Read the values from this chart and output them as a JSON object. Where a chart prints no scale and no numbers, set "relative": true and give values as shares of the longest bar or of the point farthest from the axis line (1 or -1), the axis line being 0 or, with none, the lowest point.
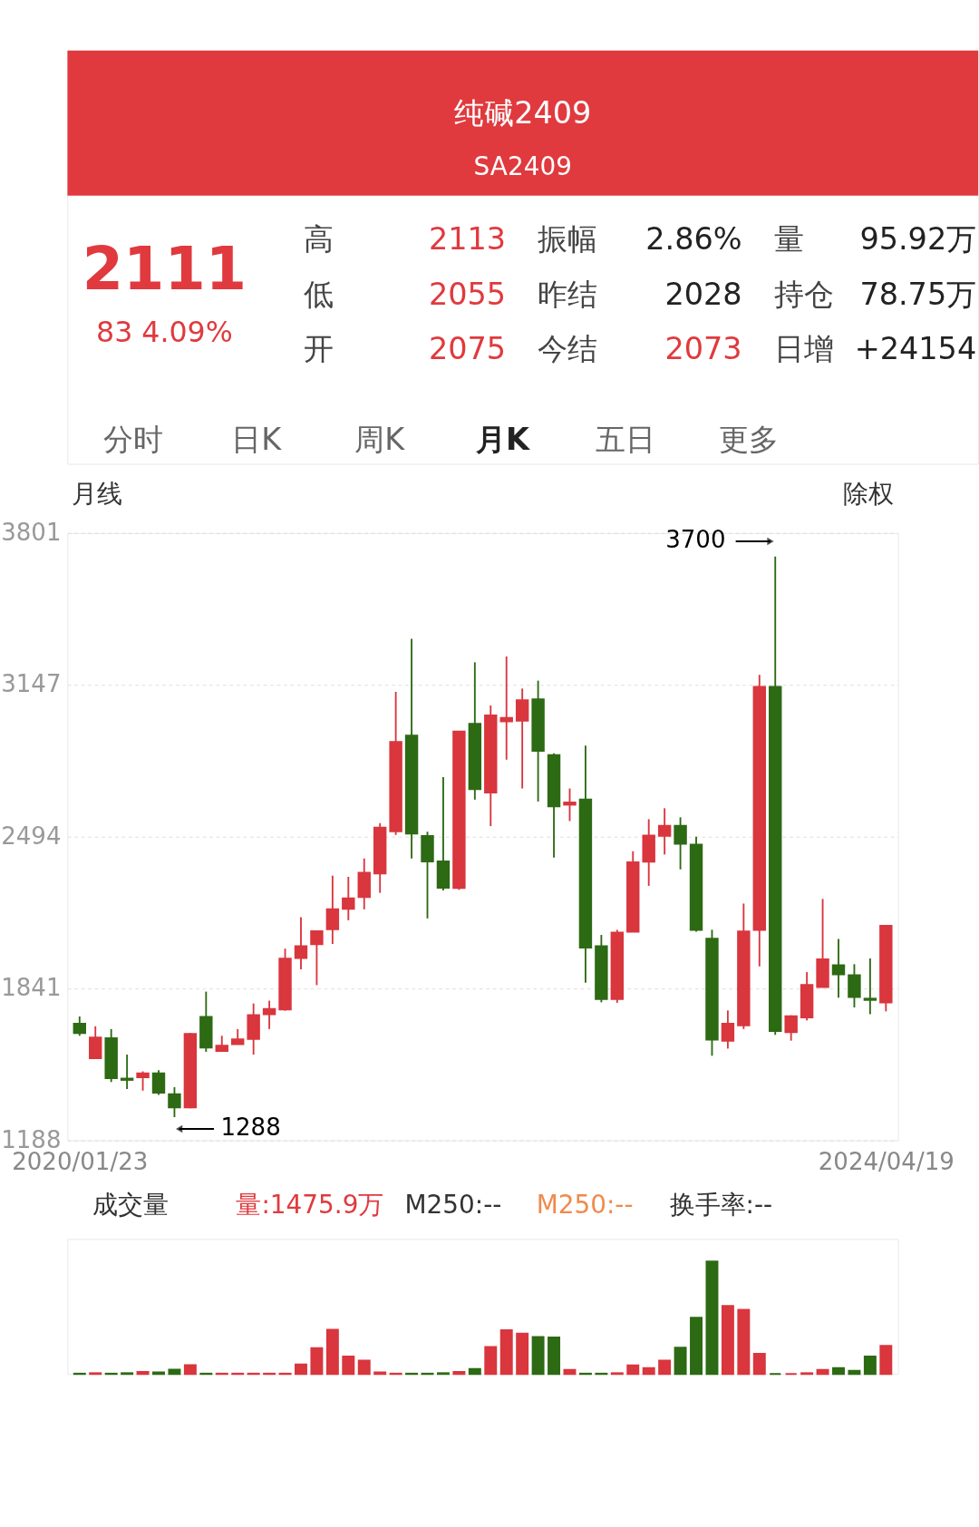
{
  "chart_data": [
    {
      "type": "other",
      "title": "纯碱2409",
      "subtitle": "SA2409",
      "annotations": [
        "2111",
        "83  4.09%",
        "高",
        "2113",
        "振幅",
        "2.86%",
        "量",
        "95.92万",
        "低",
        "2055",
        "昨结",
        "2028",
        "持仓",
        "78.75万",
        "开",
        "2075",
        "今结",
        "2073",
        "日增",
        "+24154",
        "分时",
        "日K",
        "周K",
        "月K",
        "五日",
        "更多"
      ]
    },
    {
      "type": "candlestick",
      "categories": [
        "2020/01/23",
        null,
        null,
        null,
        null,
        null,
        null,
        null,
        null,
        null,
        null,
        null,
        null,
        null,
        null,
        null,
        null,
        null,
        null,
        null,
        null,
        null,
        null,
        null,
        null,
        null,
        null,
        null,
        null,
        null,
        null,
        null,
        null,
        null,
        null,
        null,
        null,
        null,
        null,
        null,
        null,
        null,
        null,
        null,
        null,
        null,
        null,
        null,
        null,
        null,
        null,
        "2024/04/19"
      ],
      "ohlc": [
        [
          1689,
          1721,
          1638,
          1650
        ],
        [
          1542,
          1679,
          1542,
          1630
        ],
        [
          1627,
          1667,
          1439,
          1456
        ],
        [
          1453,
          1557,
          1409,
          1449
        ],
        [
          1460,
          1485,
          1402,
          1476
        ],
        [
          1476,
          1490,
          1384,
          1394
        ],
        [
          1386,
          1417,
          1288,
          1331
        ],
        [
          1331,
          1650,
          1326,
          1645
        ],
        [
          1718,
          1828,
          1569,
          1588
        ],
        [
          1573,
          1638,
          1569,
          1595
        ],
        [
          1603,
          1667,
          1600,
          1622
        ],
        [
          1625,
          1777,
          1557,
          1726
        ],
        [
          1731,
          1789,
          1667,
          1753
        ],
        [
          1752,
          2013,
          1746,
          1969
        ],
        [
          1973,
          2148,
          1924,
          2023
        ],
        [
          2033,
          2089,
          1856,
          2087
        ],
        [
          2097,
          2327,
          2033,
          2182
        ],
        [
          2185,
          2322,
          2135,
          2229
        ],
        [
          2236,
          2401,
          2182,
          2339
        ],
        [
          2337,
          2553,
          2253,
          2533
        ],
        [
          2519,
          3118,
          2502,
          2902
        ],
        [
          2929,
          3346,
          2401,
          2509
        ],
        [
          2497,
          2516,
          2143,
          2389
        ],
        [
          2388,
          2751,
          2263,
          2276
        ],
        [
          2275,
          2946,
          2266,
          2946
        ],
        [
          2980,
          3245,
          2654,
          2700
        ],
        [
          2685,
          3059,
          2540,
          3016
        ],
        [
          2992,
          3270,
          2826,
          3005
        ],
        [
          2994,
          3132,
          2702,
          3081
        ],
        [
          3085,
          3166,
          2646,
          2865
        ],
        [
          2845,
          2853,
          2405,
          2626
        ],
        [
          2633,
          2702,
          2562,
          2641
        ],
        [
          2654,
          2887,
          1866,
          2018
        ],
        [
          2023,
          2072,
          1782,
          1797
        ],
        [
          1797,
          2094,
          1780,
          2081
        ],
        [
          2086,
          2432,
          2086,
          2384
        ],
        [
          2388,
          2570,
          2283,
          2499
        ],
        [
          2499,
          2617,
          2418,
          2541
        ],
        [
          2541,
          2578,
          2354,
          2465
        ],
        [
          2460,
          2494,
          2086,
          2094
        ],
        [
          2055,
          2094,
          1552,
          1622
        ],
        [
          1617,
          1747,
          1583,
          1689
        ],
        [
          1684,
          2207,
          1667,
          2086
        ],
        [
          2094,
          3191,
          1937,
          3139
        ],
        [
          3139,
          3700,
          1642,
          1659
        ],
        [
          1654,
          1726,
          1617,
          1721
        ],
        [
          1718,
          1912,
          1704,
          1856
        ],
        [
          1848,
          2227,
          1848,
          1966
        ],
        [
          1941,
          2055,
          1802,
          1903
        ],
        [
          1898,
          1946,
          1760,
          1806
        ],
        [
          1797,
          1971,
          1731,
          1793
        ],
        [
          1782,
          2113,
          1743,
          2111
        ]
      ],
      "colors": [
        "#2d6a14",
        "#d9363e",
        "#2d6a14",
        "#2d6a14",
        "#d9363e",
        "#2d6a14",
        "#2d6a14",
        "#d9363e",
        "#2d6a14",
        "#d9363e",
        "#d9363e",
        "#d9363e",
        "#d9363e",
        "#d9363e",
        "#d9363e",
        "#d9363e",
        "#d9363e",
        "#d9363e",
        "#d9363e",
        "#d9363e",
        "#d9363e",
        "#2d6a14",
        "#2d6a14",
        "#2d6a14",
        "#d9363e",
        "#2d6a14",
        "#d9363e",
        "#d9363e",
        "#d9363e",
        "#2d6a14",
        "#2d6a14",
        "#d9363e",
        "#2d6a14",
        "#2d6a14",
        "#d9363e",
        "#d9363e",
        "#d9363e",
        "#d9363e",
        "#2d6a14",
        "#2d6a14",
        "#2d6a14",
        "#d9363e",
        "#d9363e",
        "#d9363e",
        "#2d6a14",
        "#d9363e",
        "#d9363e",
        "#d9363e",
        "#2d6a14",
        "#2d6a14",
        "#2d6a14",
        "#d9363e"
      ],
      "ylim": [
        1188,
        3801
      ],
      "yticks": [
        1188,
        1841,
        2494,
        3147,
        3801
      ],
      "grid": "y",
      "annotations": [
        "月线",
        "除权",
        "3700",
        "1288"
      ]
    },
    {
      "type": "bar",
      "relative": true,
      "categories": [
        null,
        null,
        null,
        null,
        null,
        null,
        null,
        null,
        null,
        null,
        null,
        null,
        null,
        null,
        null,
        null,
        null,
        null,
        null,
        null,
        null,
        null,
        null,
        null,
        null,
        null,
        null,
        null,
        null,
        null,
        null,
        null,
        null,
        null,
        null,
        null,
        null,
        null,
        null,
        null,
        null,
        null,
        null,
        null,
        null,
        null,
        null,
        null,
        null,
        null,
        null,
        null
      ],
      "values": [
        0.004,
        0.008,
        0.004,
        0.008,
        0.02,
        0.016,
        0.04,
        0.08,
        0.004,
        0.004,
        0.004,
        0.004,
        0.004,
        0.004,
        0.086,
        0.23,
        0.395,
        0.156,
        0.12,
        0.016,
        0.004,
        0.004,
        0.004,
        0.008,
        0.02,
        0.045,
        0.24,
        0.39,
        0.36,
        0.33,
        0.325,
        0.037,
        0.004,
        0.004,
        0.008,
        0.078,
        0.053,
        0.12,
        0.235,
        0.5,
        1,
        0.605,
        0.572,
        0.18,
        0,
        0,
        0.008,
        0.037,
        0.053,
        0.029,
        0.156,
        0.251
      ],
      "colors": [
        "#2d6a14",
        "#d9363e",
        "#2d6a14",
        "#2d6a14",
        "#d9363e",
        "#2d6a14",
        "#2d6a14",
        "#d9363e",
        "#2d6a14",
        "#d9363e",
        "#d9363e",
        "#d9363e",
        "#d9363e",
        "#d9363e",
        "#d9363e",
        "#d9363e",
        "#d9363e",
        "#d9363e",
        "#d9363e",
        "#d9363e",
        "#d9363e",
        "#2d6a14",
        "#2d6a14",
        "#2d6a14",
        "#d9363e",
        "#2d6a14",
        "#d9363e",
        "#d9363e",
        "#d9363e",
        "#2d6a14",
        "#2d6a14",
        "#d9363e",
        "#2d6a14",
        "#2d6a14",
        "#d9363e",
        "#d9363e",
        "#d9363e",
        "#d9363e",
        "#2d6a14",
        "#2d6a14",
        "#2d6a14",
        "#d9363e",
        "#d9363e",
        "#d9363e",
        "#2d6a14",
        "#d9363e",
        "#d9363e",
        "#d9363e",
        "#2d6a14",
        "#2d6a14",
        "#2d6a14",
        "#d9363e"
      ],
      "annotations": [
        "成交量",
        "量:1475.9万",
        "M250:--",
        "M250:--",
        "换手率:--"
      ]
    }
  ]
}
